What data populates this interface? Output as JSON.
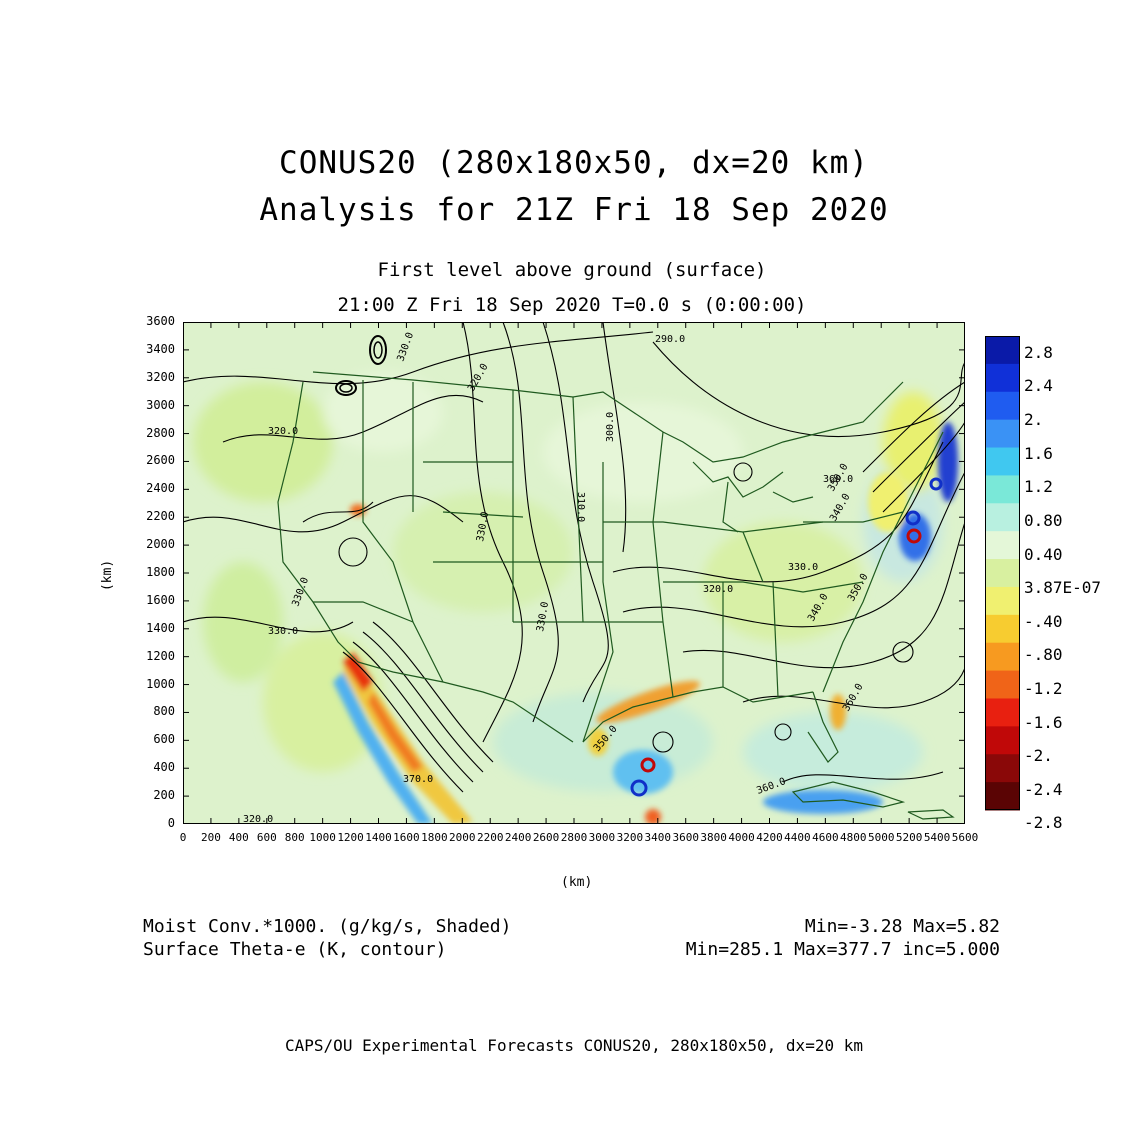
{
  "title": {
    "line1": "CONUS20 (280x180x50, dx=20 km)",
    "line2": "Analysis for 21Z Fri 18 Sep 2020"
  },
  "subtitle": {
    "level": "First level above ground (surface)",
    "time": "21:00 Z Fri 18 Sep 2020    T=0.0 s (0:00:00)"
  },
  "axes": {
    "xlabel": "(km)",
    "ylabel": "(km)",
    "xticks": [
      "0",
      "200",
      "400",
      "600",
      "800",
      "1000",
      "1200",
      "1400",
      "1600",
      "1800",
      "2000",
      "2200",
      "2400",
      "2600",
      "2800",
      "3000",
      "3200",
      "3400",
      "3600",
      "3800",
      "4000",
      "4200",
      "4400",
      "4600",
      "4800",
      "5000",
      "5200",
      "5400",
      "5600"
    ],
    "yticks": [
      "0",
      "200",
      "400",
      "600",
      "800",
      "1000",
      "1200",
      "1400",
      "1600",
      "1800",
      "2000",
      "2200",
      "2400",
      "2600",
      "2800",
      "3000",
      "3200",
      "3400",
      "3600"
    ],
    "xlim": [
      0,
      5600
    ],
    "ylim": [
      0,
      3600
    ]
  },
  "colorbar": {
    "labels": [
      "2.8",
      "2.4",
      "2.",
      "1.6",
      "1.2",
      "0.80",
      "0.40",
      "3.87E-07",
      "-.40",
      "-.80",
      "-1.2",
      "-1.6",
      "-2.",
      "-2.4",
      "-2.8"
    ],
    "colors": [
      "#0a1aa8",
      "#1030d8",
      "#1f5cf0",
      "#3a92f5",
      "#40c8f0",
      "#7ae8d8",
      "#b8f0e0",
      "#e4f7d8",
      "#d8f0a0",
      "#f0f070",
      "#f7cc30",
      "#f79a20",
      "#f06418",
      "#e82010",
      "#c00808",
      "#8a0808",
      "#5a0404"
    ]
  },
  "contour_labels": [
    "290.0",
    "300.0",
    "310.0",
    "320.0",
    "320.0",
    "320.0",
    "320.0",
    "330.0",
    "330.0",
    "330.0",
    "330.0",
    "330.0",
    "330.0",
    "340.0",
    "340.0",
    "350.0",
    "350.0",
    "350.0",
    "360.0",
    "360.0",
    "360.0",
    "370.0"
  ],
  "info": {
    "shaded_desc": "Moist Conv.*1000. (g/kg/s, Shaded)",
    "shaded_stats": "Min=-3.28 Max=5.82",
    "contour_desc": "Surface Theta-e (K, contour)",
    "contour_stats": "Min=285.1 Max=377.7 inc=5.000"
  },
  "footer": "CAPS/OU Experimental Forecasts  CONUS20, 280x180x50, dx=20 km"
}
